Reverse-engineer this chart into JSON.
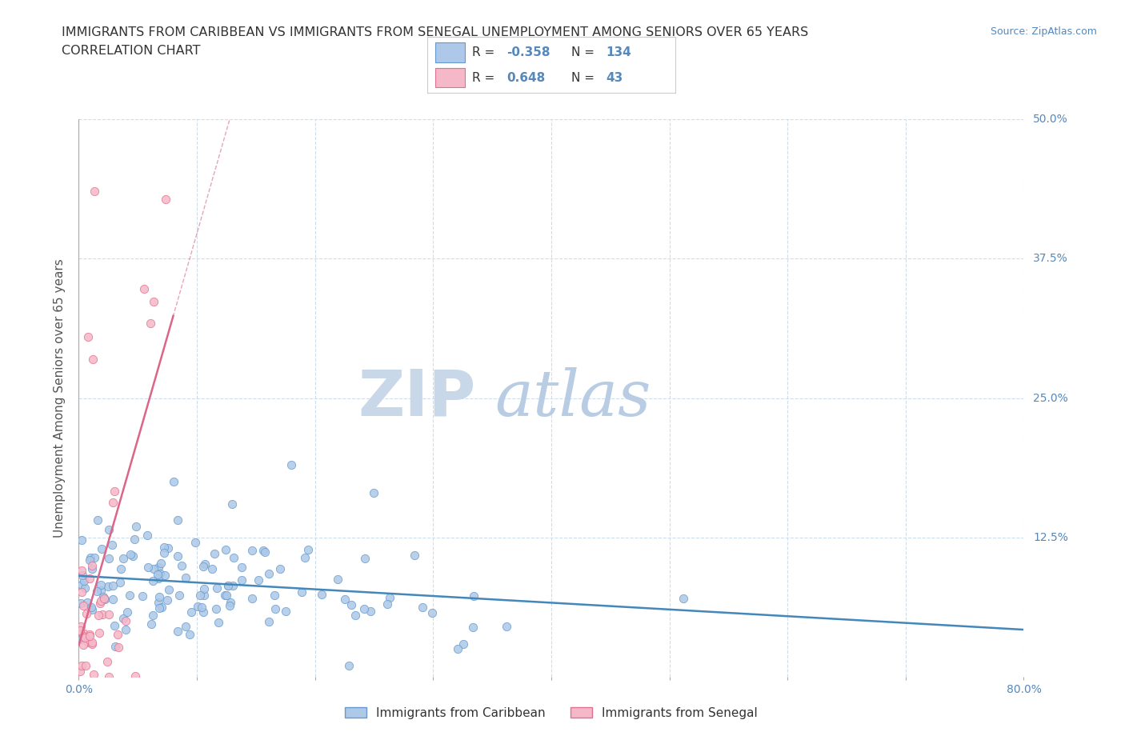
{
  "title_line1": "IMMIGRANTS FROM CARIBBEAN VS IMMIGRANTS FROM SENEGAL UNEMPLOYMENT AMONG SENIORS OVER 65 YEARS",
  "title_line2": "CORRELATION CHART",
  "source_text": "Source: ZipAtlas.com",
  "ylabel": "Unemployment Among Seniors over 65 years",
  "xlim": [
    0.0,
    0.8
  ],
  "ylim": [
    0.0,
    0.5
  ],
  "xticks": [
    0.0,
    0.1,
    0.2,
    0.3,
    0.4,
    0.5,
    0.6,
    0.7,
    0.8
  ],
  "xticklabels": [
    "0.0%",
    "",
    "",
    "",
    "",
    "",
    "",
    "",
    "80.0%"
  ],
  "ytick_positions": [
    0.0,
    0.125,
    0.25,
    0.375,
    0.5
  ],
  "yticklabels_right": [
    "",
    "12.5%",
    "25.0%",
    "37.5%",
    "50.0%"
  ],
  "caribbean_fill": "#adc8e8",
  "caribbean_edge": "#6699cc",
  "senegal_fill": "#f5b8c8",
  "senegal_edge": "#e07090",
  "caribbean_line_color": "#4488bb",
  "senegal_line_color": "#dd6688",
  "R_caribbean": -0.358,
  "N_caribbean": 134,
  "R_senegal": 0.648,
  "N_senegal": 43,
  "background_color": "#ffffff",
  "grid_color": "#ccddee",
  "title_color": "#333333",
  "axis_label_color": "#5588bb",
  "watermark_zip": "ZIP",
  "watermark_atlas": "atlas",
  "watermark_color_zip": "#c8d8e8",
  "watermark_color_atlas": "#b8cce4",
  "legend_label_caribbean": "Immigrants from Caribbean",
  "legend_label_senegal": "Immigrants from Senegal",
  "seed": 12345
}
